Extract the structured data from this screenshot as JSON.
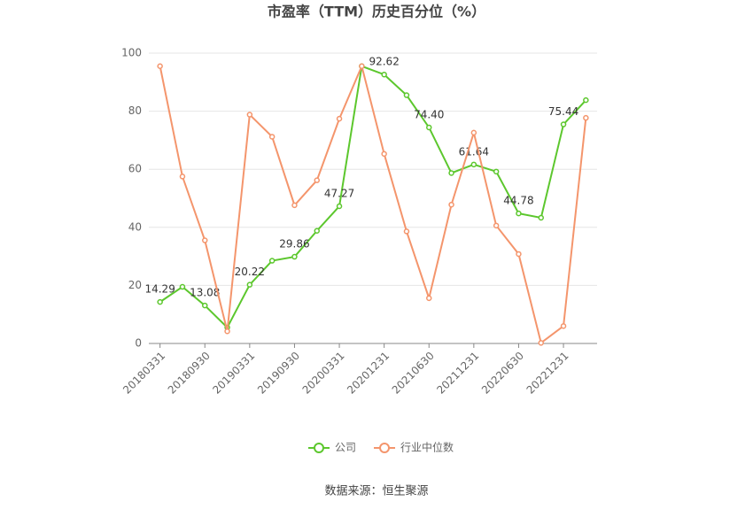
{
  "chart_data": {
    "type": "line",
    "title": "市盈率（TTM）历史百分位（%）",
    "categories": [
      "20180331",
      null,
      "20180930",
      null,
      "20190331",
      null,
      "20190930",
      null,
      "20200331",
      null,
      "20201231",
      null,
      "20210630",
      null,
      "20211231",
      null,
      "20220630",
      null,
      "20221231",
      null
    ],
    "series": [
      {
        "name": "公司",
        "color": "#5cc72d",
        "values": [
          14.29,
          19.5,
          13.08,
          5.5,
          20.22,
          28.5,
          29.86,
          38.8,
          47.27,
          95.5,
          92.62,
          85.5,
          74.4,
          58.7,
          61.64,
          59.2,
          44.78,
          43.3,
          75.44,
          83.8
        ],
        "value_labels": [
          "14.29",
          null,
          "13.08",
          null,
          "20.22",
          null,
          "29.86",
          null,
          "47.27",
          null,
          "92.62",
          null,
          "74.40",
          null,
          "61.64",
          null,
          "44.78",
          null,
          "75.44",
          null
        ]
      },
      {
        "name": "行业中位数",
        "color": "#f4956c",
        "values": [
          95.5,
          57.5,
          35.5,
          4.2,
          78.8,
          71.2,
          47.6,
          56.2,
          77.4,
          95.5,
          65.3,
          38.6,
          15.6,
          47.8,
          72.6,
          40.6,
          30.8,
          0.2,
          6.0,
          77.7
        ]
      }
    ],
    "ylim": [
      0,
      100
    ],
    "yticks": [
      0,
      20,
      40,
      60,
      80,
      100
    ],
    "grid": true,
    "legend": "bottom",
    "source": "数据来源：恒生聚源"
  }
}
